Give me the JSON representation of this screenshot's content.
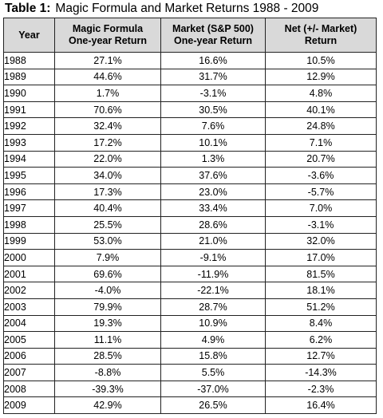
{
  "title": {
    "label": "Table 1:",
    "text": "Magic Formula and Market Returns 1988 - 2009"
  },
  "columns": [
    {
      "line1": "Year",
      "line2": ""
    },
    {
      "line1": "Magic Formula",
      "line2": "One-year Return"
    },
    {
      "line1": "Market (S&P 500)",
      "line2": "One-year Return"
    },
    {
      "line1": "Net (+/- Market)",
      "line2": "Return"
    }
  ],
  "rows": [
    [
      "1988",
      "27.1%",
      "16.6%",
      "10.5%"
    ],
    [
      "1989",
      "44.6%",
      "31.7%",
      "12.9%"
    ],
    [
      "1990",
      "1.7%",
      "-3.1%",
      "4.8%"
    ],
    [
      "1991",
      "70.6%",
      "30.5%",
      "40.1%"
    ],
    [
      "1992",
      "32.4%",
      "7.6%",
      "24.8%"
    ],
    [
      "1993",
      "17.2%",
      "10.1%",
      "7.1%"
    ],
    [
      "1994",
      "22.0%",
      "1.3%",
      "20.7%"
    ],
    [
      "1995",
      "34.0%",
      "37.6%",
      "-3.6%"
    ],
    [
      "1996",
      "17.3%",
      "23.0%",
      "-5.7%"
    ],
    [
      "1997",
      "40.4%",
      "33.4%",
      "7.0%"
    ],
    [
      "1998",
      "25.5%",
      "28.6%",
      "-3.1%"
    ],
    [
      "1999",
      "53.0%",
      "21.0%",
      "32.0%"
    ],
    [
      "2000",
      "7.9%",
      "-9.1%",
      "17.0%"
    ],
    [
      "2001",
      "69.6%",
      "-11.9%",
      "81.5%"
    ],
    [
      "2002",
      "-4.0%",
      "-22.1%",
      "18.1%"
    ],
    [
      "2003",
      "79.9%",
      "28.7%",
      "51.2%"
    ],
    [
      "2004",
      "19.3%",
      "10.9%",
      "8.4%"
    ],
    [
      "2005",
      "11.1%",
      "4.9%",
      "6.2%"
    ],
    [
      "2006",
      "28.5%",
      "15.8%",
      "12.7%"
    ],
    [
      "2007",
      "-8.8%",
      "5.5%",
      "-14.3%"
    ],
    [
      "2008",
      "-39.3%",
      "-37.0%",
      "-2.3%"
    ],
    [
      "2009",
      "42.9%",
      "26.5%",
      "16.4%"
    ]
  ],
  "colors": {
    "header_bg": "#d9d9d9",
    "border": "#222222"
  }
}
